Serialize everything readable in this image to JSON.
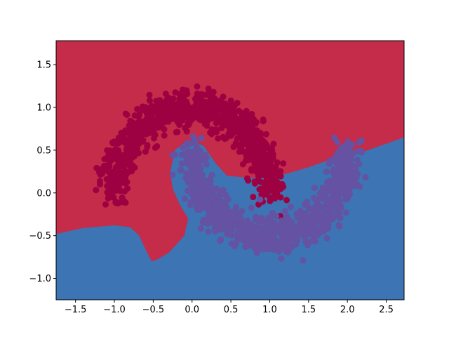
{
  "chart_data": {
    "type": "scatter",
    "subtype": "decision-boundary",
    "title": "",
    "xlabel": "",
    "ylabel": "",
    "xlim": [
      -1.75,
      2.73
    ],
    "ylim": [
      -1.25,
      1.78
    ],
    "x_ticks": [
      -1.5,
      -1.0,
      -0.5,
      0.0,
      0.5,
      1.0,
      1.5,
      2.0,
      2.5
    ],
    "x_tick_labels": [
      "−1.5",
      "−1.0",
      "−0.5",
      "0.0",
      "0.5",
      "1.0",
      "1.5",
      "2.0",
      "2.5"
    ],
    "y_ticks": [
      -1.0,
      -0.5,
      0.0,
      0.5,
      1.0,
      1.5
    ],
    "y_tick_labels": [
      "−1.0",
      "−0.5",
      "0.0",
      "0.5",
      "1.0",
      "1.5"
    ],
    "grid": false,
    "legend": "none",
    "regions": [
      {
        "class": 0,
        "color": "#c42c4a",
        "boundary_curve": [
          [
            -1.75,
            -0.48
          ],
          [
            -1.4,
            -0.41
          ],
          [
            -1.0,
            -0.38
          ],
          [
            -0.8,
            -0.4
          ],
          [
            -0.68,
            -0.5
          ],
          [
            -0.6,
            -0.66
          ],
          [
            -0.52,
            -0.8
          ],
          [
            -0.45,
            -0.78
          ],
          [
            -0.3,
            -0.7
          ],
          [
            -0.1,
            -0.5
          ],
          [
            -0.05,
            -0.3
          ],
          [
            -0.15,
            -0.15
          ],
          [
            -0.25,
            0.05
          ],
          [
            -0.28,
            0.25
          ],
          [
            -0.22,
            0.5
          ],
          [
            -0.05,
            0.62
          ],
          [
            0.15,
            0.55
          ],
          [
            0.3,
            0.35
          ],
          [
            0.45,
            0.2
          ],
          [
            0.7,
            0.18
          ],
          [
            0.95,
            0.18
          ],
          [
            1.2,
            0.22
          ],
          [
            1.5,
            0.3
          ],
          [
            1.75,
            0.38
          ],
          [
            2.0,
            0.42
          ],
          [
            2.2,
            0.48
          ],
          [
            2.45,
            0.56
          ],
          [
            2.73,
            0.65
          ]
        ]
      },
      {
        "class": 1,
        "color": "#3c74b4"
      }
    ],
    "series": [
      {
        "color": "#9e0142",
        "shape": "upper-moon",
        "center": [
          0.0,
          0.0
        ],
        "radius": 1.0,
        "angle_range_deg": [
          0,
          180
        ],
        "noise": 0.1,
        "n_points": 1000
      },
      {
        "color": "#6552a3",
        "shape": "lower-moon",
        "center": [
          1.0,
          0.5
        ],
        "radius": 1.0,
        "angle_range_deg": [
          180,
          360
        ],
        "noise": 0.1,
        "n_points": 1000
      }
    ]
  }
}
